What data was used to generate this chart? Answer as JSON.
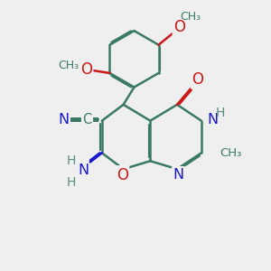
{
  "bg_color": "#efefef",
  "bond_color": "#3a7a65",
  "bond_width": 1.8,
  "dbo": 0.055,
  "atom_colors": {
    "C": "#3a7a65",
    "N": "#1818cc",
    "O": "#cc1818",
    "H": "#5a8a7a"
  },
  "xlim": [
    0,
    10
  ],
  "ylim": [
    0,
    10
  ]
}
